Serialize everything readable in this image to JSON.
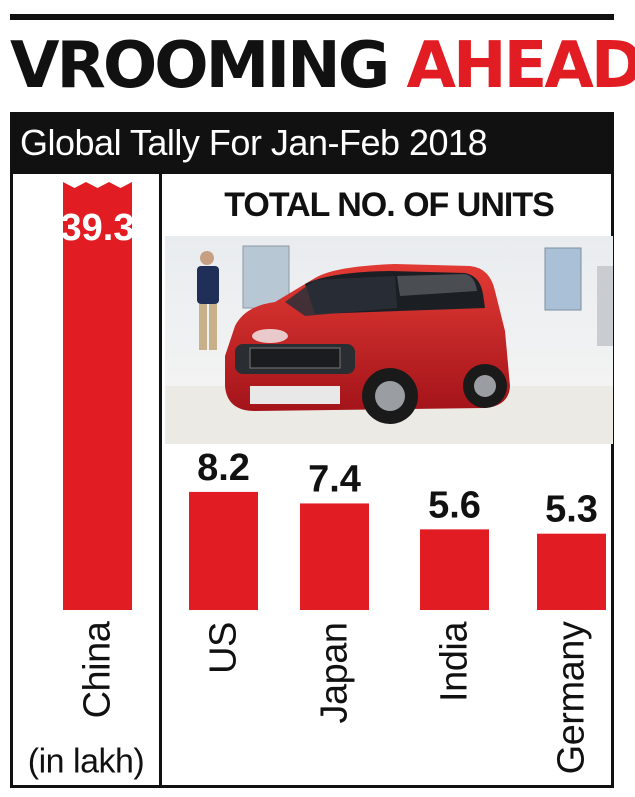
{
  "title": {
    "word1": "VROOMING",
    "word2": "AHEAD"
  },
  "subtitle": "Global Tally For Jan-Feb 2018",
  "units_title": "TOTAL NO. OF UNITS",
  "unit_note": "(in lakh)",
  "colors": {
    "bar": "#e11d23",
    "title_accent": "#e11d23",
    "text": "#111111",
    "subtitle_bg": "#111111"
  },
  "chart_data": {
    "type": "bar",
    "title": "VROOMING AHEAD",
    "subtitle": "Global Tally For Jan-Feb 2018",
    "categories": [
      "China",
      "US",
      "Japan",
      "India",
      "Germany"
    ],
    "values": [
      39.3,
      8.2,
      7.4,
      5.6,
      5.3
    ],
    "unit": "(in lakh)",
    "axis_break_on": "China",
    "grid": false
  }
}
